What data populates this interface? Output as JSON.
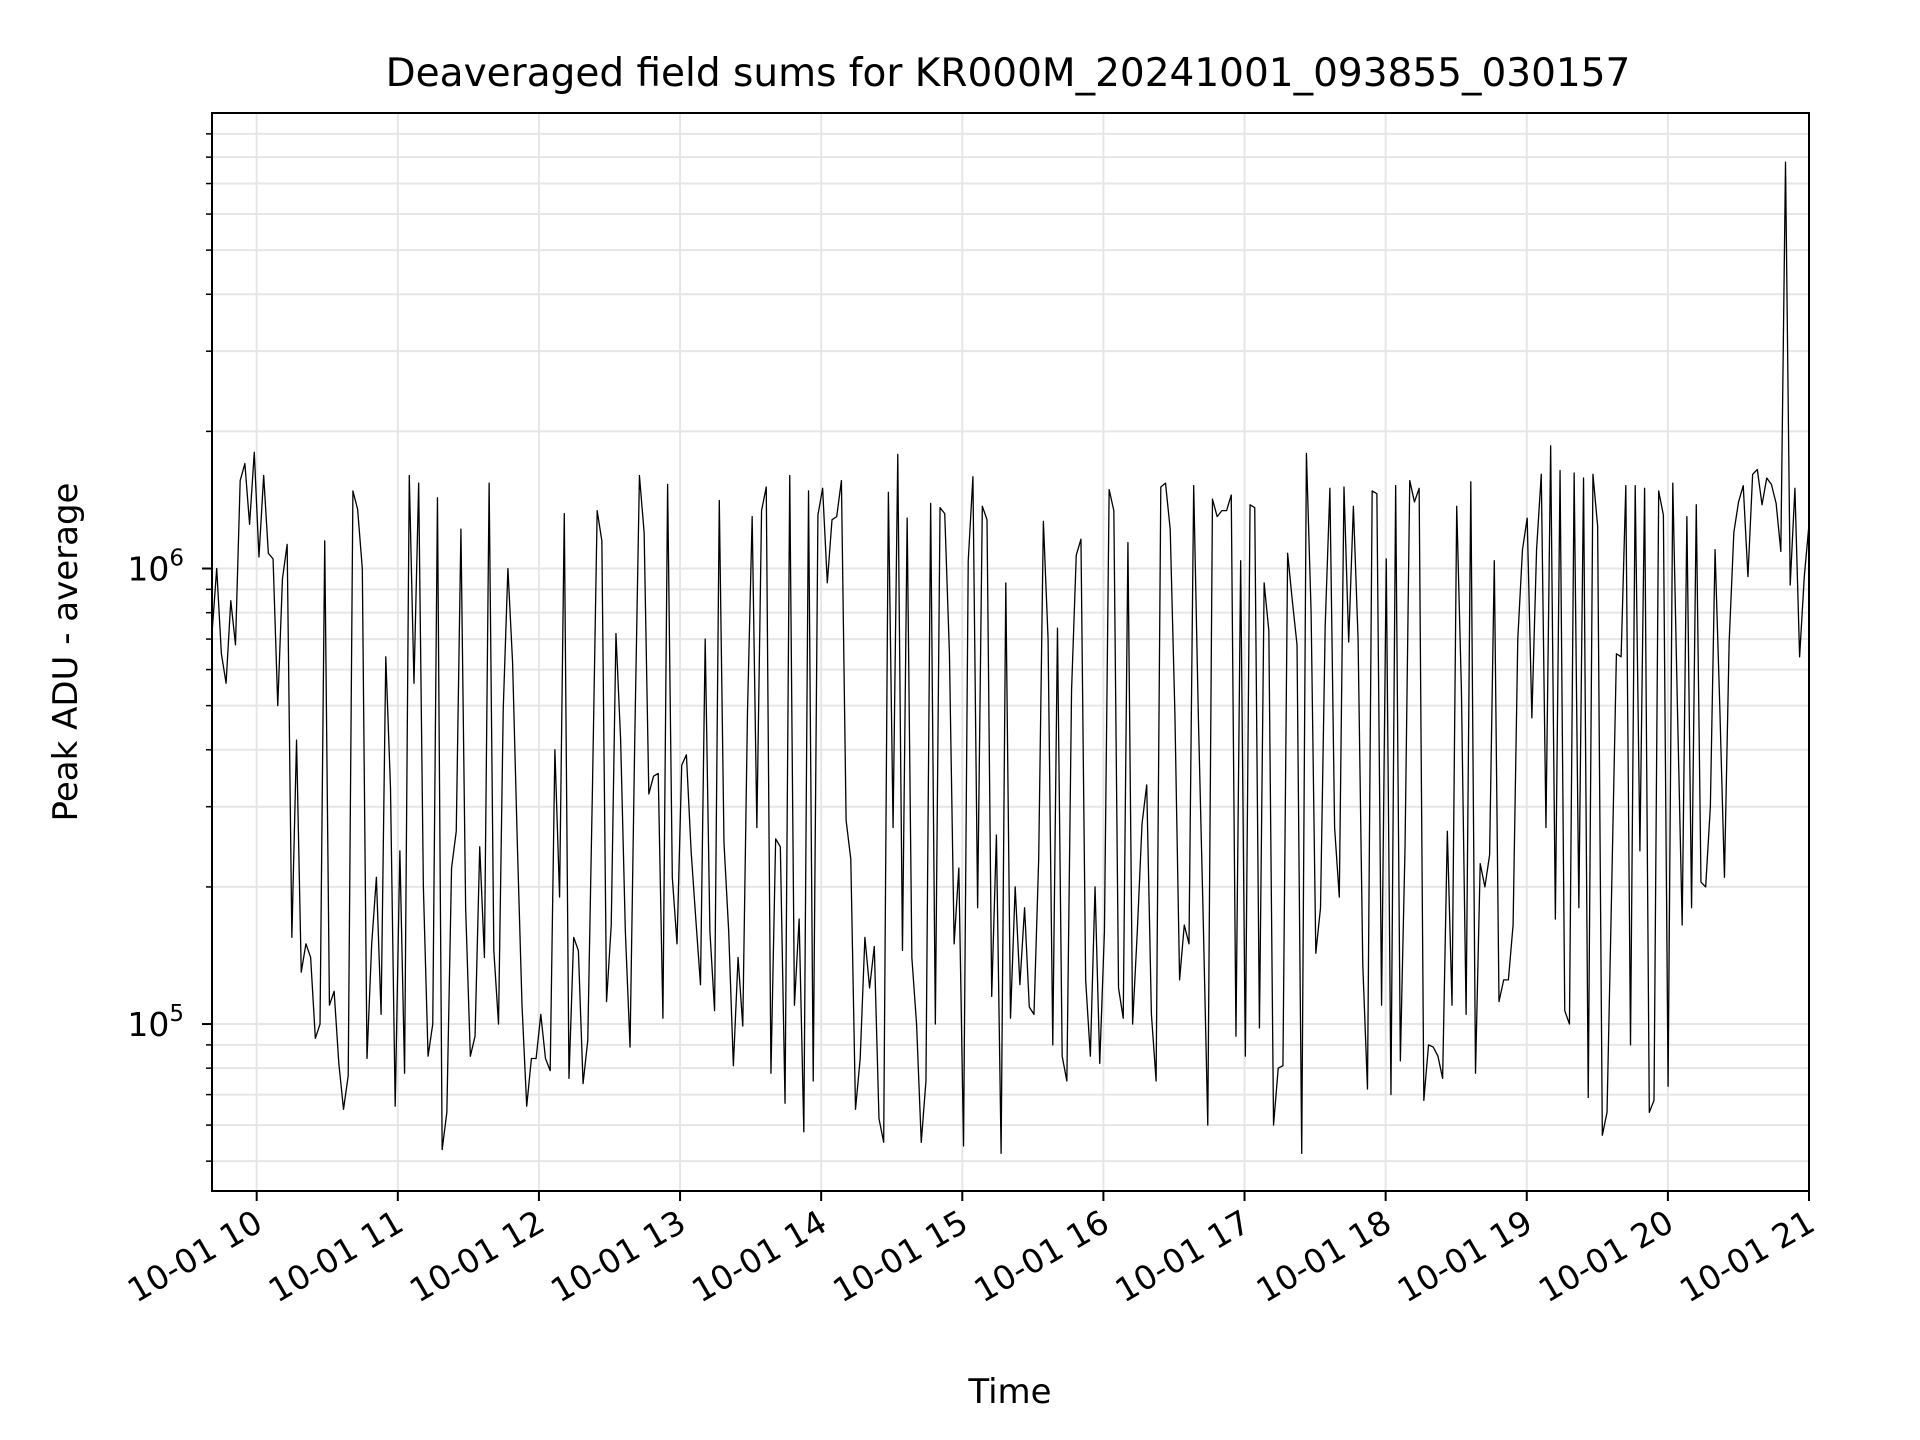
{
  "chart_data": {
    "type": "line",
    "title": "Deaveraged field sums for KR000M_20241001_093855_030157",
    "xlabel": "Time",
    "ylabel": "Peak ADU - average",
    "x_start": "2024-10-01T09:41",
    "x_end": "2024-10-01T21:00",
    "xlim": [
      "2024-10-01T09:41",
      "2024-10-01T21:00"
    ],
    "ylim": [
      43000,
      10000000
    ],
    "y_scale": "log",
    "grid": true,
    "line_color": "#000000",
    "grid_color": "#e6e6e6",
    "x_ticks": [
      "10-01 10",
      "10-01 11",
      "10-01 12",
      "10-01 13",
      "10-01 14",
      "10-01 15",
      "10-01 16",
      "10-01 17",
      "10-01 18",
      "10-01 19",
      "10-01 20",
      "10-01 21"
    ],
    "y_ticks": [
      {
        "base": "10",
        "exp": "5",
        "value": 100000
      },
      {
        "base": "10",
        "exp": "6",
        "value": 1000000
      }
    ],
    "values": [
      720000,
      1000000,
      650000,
      560000,
      850000,
      680000,
      1560000,
      1700000,
      1250000,
      1800000,
      1060000,
      1600000,
      1080000,
      1050000,
      500000,
      950000,
      1130000,
      155000,
      420000,
      130000,
      150000,
      140000,
      93000,
      100000,
      1150000,
      110000,
      118000,
      82000,
      65000,
      77000,
      1480000,
      1350000,
      1000000,
      84000,
      150000,
      210000,
      105000,
      640000,
      330000,
      66000,
      240000,
      78000,
      1600000,
      560000,
      1540000,
      200000,
      85000,
      100000,
      1430000,
      53000,
      64000,
      220000,
      265000,
      1220000,
      180000,
      85000,
      94000,
      245000,
      140000,
      1540000,
      145000,
      100000,
      490000,
      1000000,
      620000,
      250000,
      110000,
      66000,
      84000,
      84000,
      105000,
      84000,
      79000,
      400000,
      190000,
      1320000,
      76000,
      155000,
      145000,
      74000,
      92000,
      330000,
      1340000,
      1150000,
      112000,
      165000,
      720000,
      420000,
      160000,
      89000,
      420000,
      1600000,
      1200000,
      320000,
      350000,
      355000,
      103000,
      1530000,
      210000,
      150000,
      370000,
      390000,
      240000,
      170000,
      122000,
      700000,
      160000,
      107000,
      1410000,
      250000,
      160000,
      81000,
      140000,
      99000,
      480000,
      1300000,
      270000,
      1340000,
      1510000,
      78000,
      255000,
      245000,
      67000,
      1600000,
      110000,
      170000,
      58000,
      1480000,
      75000,
      1310000,
      1500000,
      930000,
      1280000,
      1300000,
      1560000,
      280000,
      230000,
      65000,
      84000,
      155000,
      120000,
      148000,
      62000,
      55000,
      1470000,
      270000,
      1780000,
      145000,
      1290000,
      140000,
      100000,
      55000,
      75000,
      1390000,
      100000,
      1360000,
      1320000,
      650000,
      150000,
      220000,
      54000,
      1040000,
      1590000,
      180000,
      1370000,
      1280000,
      115000,
      260000,
      52000,
      930000,
      103000,
      200000,
      122000,
      180000,
      109000,
      105000,
      230000,
      1270000,
      700000,
      90000,
      740000,
      85000,
      75000,
      540000,
      1070000,
      1160000,
      125000,
      85000,
      200000,
      82000,
      160000,
      1490000,
      1340000,
      120000,
      103000,
      1140000,
      100000,
      160000,
      275000,
      335000,
      105000,
      75000,
      1510000,
      1540000,
      1220000,
      480000,
      125000,
      165000,
      150000,
      1520000,
      470000,
      175000,
      60000,
      1420000,
      1300000,
      1340000,
      1340000,
      1450000,
      94000,
      1040000,
      85000,
      1380000,
      1360000,
      98000,
      930000,
      730000,
      60000,
      80000,
      81000,
      1080000,
      850000,
      680000,
      52000,
      1790000,
      800000,
      143000,
      180000,
      750000,
      1500000,
      270000,
      190000,
      1510000,
      690000,
      1370000,
      700000,
      135000,
      72000,
      1480000,
      1460000,
      110000,
      1050000,
      70000,
      1520000,
      83000,
      245000,
      1560000,
      1400000,
      1500000,
      68000,
      90000,
      89000,
      85000,
      76000,
      265000,
      110000,
      1370000,
      540000,
      105000,
      1550000,
      78000,
      225000,
      200000,
      235000,
      1040000,
      112000,
      125000,
      125000,
      165000,
      700000,
      1100000,
      1290000,
      470000,
      1100000,
      1610000,
      270000,
      1860000,
      170000,
      1640000,
      107000,
      100000,
      1620000,
      180000,
      1580000,
      69000,
      1610000,
      1240000,
      57000,
      64000,
      200000,
      650000,
      640000,
      1520000,
      90000,
      1520000,
      240000,
      1500000,
      64000,
      68000,
      1480000,
      1310000,
      73000,
      1540000,
      490000,
      165000,
      1300000,
      180000,
      1380000,
      205000,
      200000,
      300000,
      1100000,
      500000,
      210000,
      690000,
      1200000,
      1400000,
      1520000,
      960000,
      1610000,
      1650000,
      1380000,
      1580000,
      1530000,
      1390000,
      1090000,
      7800000,
      920000,
      1500000,
      640000,
      960000,
      1250000
    ]
  }
}
